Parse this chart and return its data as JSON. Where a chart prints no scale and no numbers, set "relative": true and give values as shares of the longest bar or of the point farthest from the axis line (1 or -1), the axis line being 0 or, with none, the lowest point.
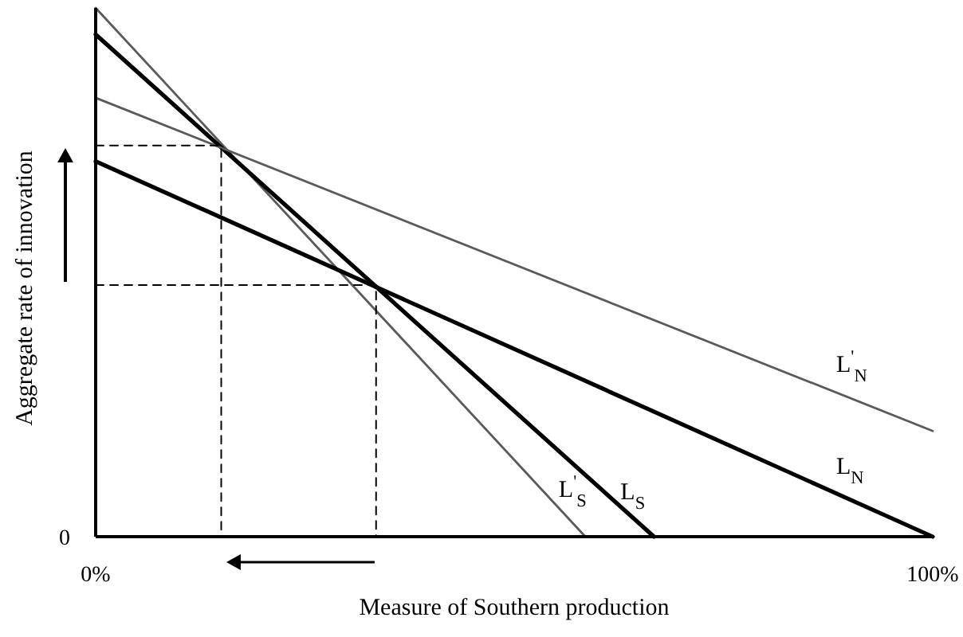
{
  "chart_data": {
    "type": "line",
    "relative": true,
    "xlabel": "Measure of Southern production",
    "ylabel": "Aggregate rate of innovation",
    "xlim": [
      0,
      100
    ],
    "xticks": [
      {
        "value": 0,
        "label": "0%"
      },
      {
        "value": 100,
        "label": "100%"
      }
    ],
    "annotations": [
      "0"
    ],
    "grid": false,
    "marker": "none",
    "series": [
      {
        "name": "L$^{'}$$_{S}$",
        "color": "#5a5a5a",
        "x": [
          0,
          58.5
        ],
        "values": [
          1,
          0
        ]
      },
      {
        "name": "L$_{S}$",
        "color": "#000000",
        "x": [
          0,
          66.7
        ],
        "values": [
          0.95,
          0
        ]
      },
      {
        "name": "L$^{'}$$_{N}$",
        "color": "#5a5a5a",
        "x": [
          0,
          100
        ],
        "values": [
          0.83,
          0.2
        ]
      },
      {
        "name": "L$_{N}$",
        "color": "#000000",
        "x": [
          0,
          100
        ],
        "values": [
          0.71,
          0
        ]
      },
      {
        "color": "#000000",
        "line_style": "dashed",
        "x": [
          0,
          15,
          15
        ],
        "values": [
          0.74,
          0.74,
          0
        ]
      },
      {
        "color": "#000000",
        "line_style": "dashed",
        "x": [
          0,
          33.5,
          33.5
        ],
        "values": [
          0.476,
          0.476,
          0
        ]
      }
    ]
  }
}
